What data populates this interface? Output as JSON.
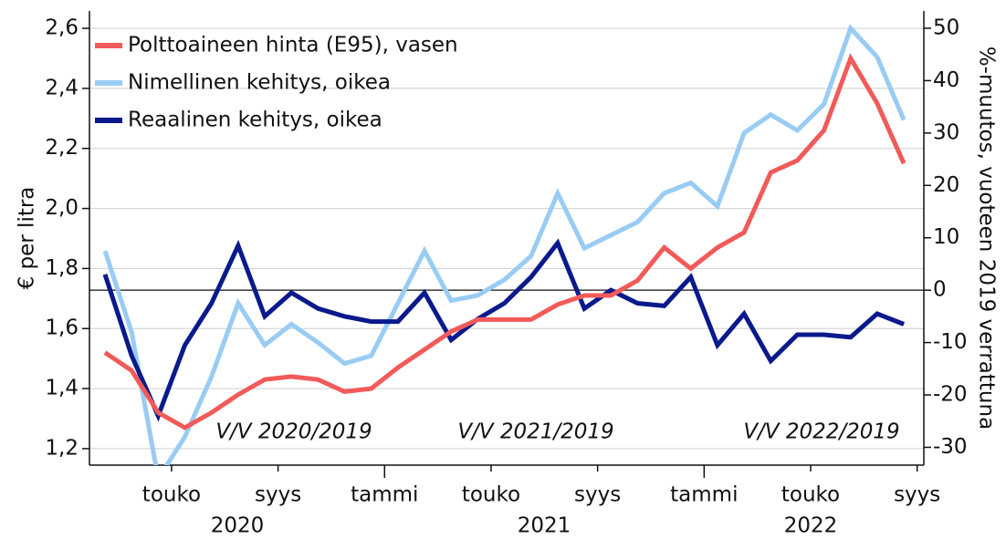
{
  "chart_data": {
    "type": "line",
    "ylabel": "€ per litra",
    "y2label": "%-muutos, vuoteen 2019 verrattuna",
    "categories": [
      null,
      null,
      "touko",
      null,
      null,
      null,
      "syys",
      null,
      null,
      null,
      "tammi",
      null,
      null,
      null,
      "touko",
      null,
      null,
      null,
      "syys",
      null,
      null,
      null,
      "tammi",
      null,
      null,
      null,
      "touko",
      null,
      null,
      null,
      "syys"
    ],
    "years": [
      "2020",
      "2021",
      "2022"
    ],
    "annotations": [
      "V/V 2020/2019",
      "V/V 2021/2019",
      "V/V 2022/2019"
    ],
    "ylim": [
      1.145,
      2.658
    ],
    "yticks": [
      {
        "value": 1.2,
        "label": "1,2"
      },
      {
        "value": 1.4,
        "label": "1,4"
      },
      {
        "value": 1.6,
        "label": "1,6"
      },
      {
        "value": 1.8,
        "label": "1,8"
      },
      {
        "value": 2.0,
        "label": "2,0"
      },
      {
        "value": 2.2,
        "label": "2,2"
      },
      {
        "value": 2.4,
        "label": "2,4"
      },
      {
        "value": 2.6,
        "label": "2,6"
      }
    ],
    "y2lim": [
      -33.4,
      53.3
    ],
    "y2ticks": [
      -30,
      -20,
      -10,
      0,
      10,
      20,
      30,
      40,
      50
    ],
    "grid": true,
    "series": [
      {
        "name": "Polttoaineen hinta (E95), vasen",
        "color": "#f25a5a",
        "axis": "y",
        "values": [
          1.52,
          1.46,
          1.32,
          1.27,
          1.32,
          1.38,
          1.43,
          1.44,
          1.43,
          1.39,
          1.4,
          1.47,
          1.53,
          1.59,
          1.63,
          1.63,
          1.63,
          1.68,
          1.71,
          1.71,
          1.76,
          1.87,
          1.8,
          1.87,
          1.92,
          2.12,
          2.16,
          2.26,
          2.5,
          2.35,
          2.15
        ]
      },
      {
        "name": "Nimellinen kehitys, oikea",
        "color": "#99ccf5",
        "axis": "y2",
        "values": [
          7.5,
          -8,
          -36,
          -28,
          -16.5,
          -2.5,
          -10.5,
          -6.5,
          -10,
          -14,
          -12.5,
          -2.5,
          7.5,
          -2,
          -1,
          2,
          6.5,
          18.5,
          8,
          10.5,
          13,
          18.5,
          20.5,
          16,
          30,
          33.5,
          30.5,
          35.5,
          50,
          44.5,
          32.5
        ]
      },
      {
        "name": "Reaalinen kehitys, oikea",
        "color": "#0a1a8c",
        "axis": "y2",
        "values": [
          3,
          -12.5,
          -24,
          -10.5,
          -2.5,
          8.5,
          -5,
          -0.5,
          -3.5,
          -5,
          -6,
          -6,
          -0.5,
          -9.5,
          -5.5,
          -2.5,
          2.5,
          9,
          -3.5,
          0,
          -2.5,
          -3,
          2.5,
          -10.5,
          -4.5,
          -13.5,
          -8.5,
          -8.5,
          -9,
          -4.5,
          -6.5
        ]
      }
    ]
  }
}
